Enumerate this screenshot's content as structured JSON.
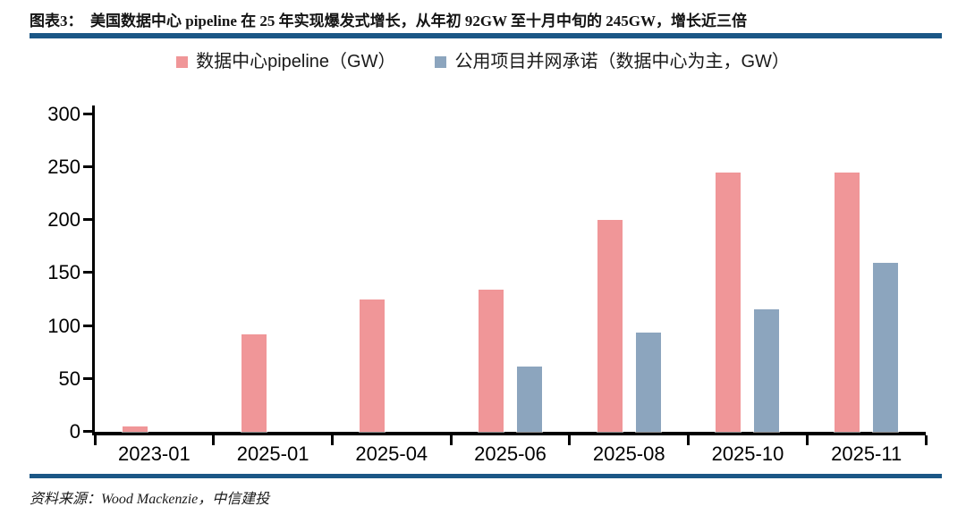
{
  "header": {
    "title": "图表3：　美国数据中心 pipeline 在 25 年实现爆发式增长，从年初 92GW 至十月中旬的 245GW，增长近三倍"
  },
  "legend": {
    "items": [
      {
        "label": "数据中心pipeline（GW）",
        "color": "#F09698"
      },
      {
        "label": "公用项目并网承诺（数据中心为主，GW）",
        "color": "#8CA5BE"
      }
    ]
  },
  "chart_data": {
    "type": "bar",
    "title": "",
    "categories": [
      "2023-01",
      "2025-01",
      "2025-04",
      "2025-06",
      "2025-08",
      "2025-10",
      "2025-11"
    ],
    "series": [
      {
        "name": "数据中心pipeline（GW）",
        "color": "#F09698",
        "values": [
          5,
          92,
          125,
          134,
          200,
          245,
          245
        ]
      },
      {
        "name": "公用项目并网承诺（数据中心为主，GW）",
        "color": "#8CA5BE",
        "values": [
          null,
          null,
          null,
          62,
          94,
          116,
          160
        ]
      }
    ],
    "xlabel": "",
    "ylabel": "",
    "ylim": [
      0,
      300
    ],
    "yticks": [
      0,
      50,
      100,
      150,
      200,
      250,
      300
    ],
    "grid": false,
    "legend_position": "top"
  },
  "footer": {
    "source": "资料来源：Wood Mackenzie，中信建投"
  },
  "theme": {
    "rule_color": "#1B5786",
    "axis_color": "#000000",
    "background": "#FFFFFF"
  }
}
